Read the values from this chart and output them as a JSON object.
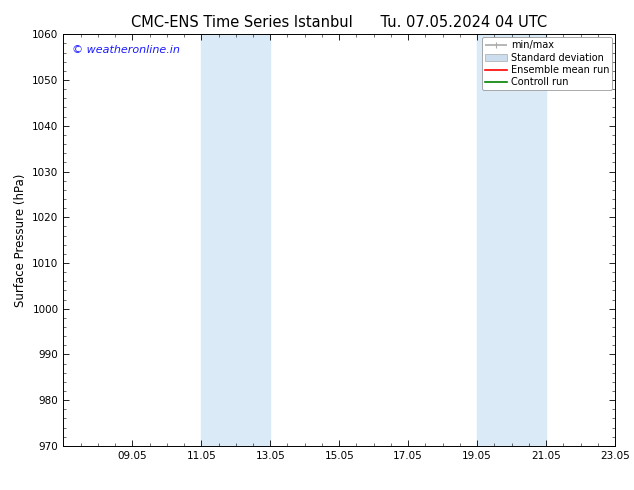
{
  "title_left": "CMC-ENS Time Series Istanbul",
  "title_right": "Tu. 07.05.2024 04 UTC",
  "ylabel": "Surface Pressure (hPa)",
  "ylim": [
    970,
    1060
  ],
  "yticks": [
    970,
    980,
    990,
    1000,
    1010,
    1020,
    1030,
    1040,
    1050,
    1060
  ],
  "xlim": [
    0,
    16
  ],
  "xtick_positions": [
    2,
    4,
    6,
    8,
    10,
    12,
    14,
    16
  ],
  "xtick_labels": [
    "09.05",
    "11.05",
    "13.05",
    "15.05",
    "17.05",
    "19.05",
    "21.05",
    "23.05"
  ],
  "shade_bands": [
    {
      "x_start": 4,
      "x_end": 6
    },
    {
      "x_start": 12,
      "x_end": 14
    }
  ],
  "shade_color": "#daeaf7",
  "background_color": "#ffffff",
  "watermark_text": "© weatheronline.in",
  "watermark_color": "#1a1aff",
  "legend_entries": [
    {
      "label": "min/max",
      "color": "#aaaaaa",
      "lw": 1.2,
      "type": "line_with_caps"
    },
    {
      "label": "Standard deviation",
      "color": "#ccddee",
      "lw": 6,
      "type": "patch"
    },
    {
      "label": "Ensemble mean run",
      "color": "red",
      "lw": 1.2,
      "type": "line"
    },
    {
      "label": "Controll run",
      "color": "green",
      "lw": 1.2,
      "type": "line"
    }
  ],
  "title_fontsize": 10.5,
  "tick_fontsize": 7.5,
  "ylabel_fontsize": 8.5,
  "watermark_fontsize": 8,
  "legend_fontsize": 7
}
